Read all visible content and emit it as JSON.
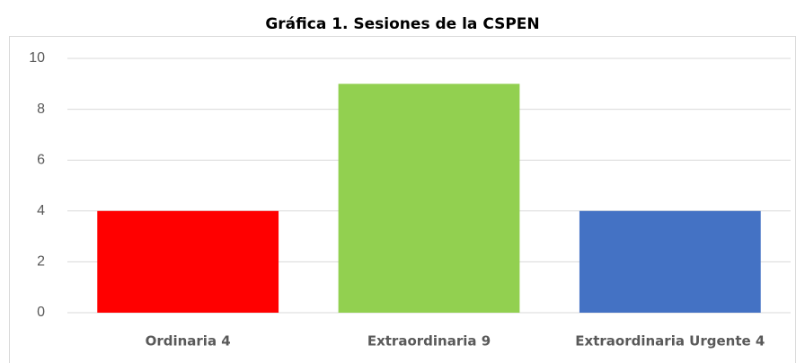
{
  "chart_data": {
    "type": "bar",
    "title": "Gráfica 1. Sesiones de la CSPEN",
    "categories": [
      "Ordinaria 4",
      "Extraordinaria 9",
      "Extraordinaria Urgente 4"
    ],
    "values": [
      4,
      9,
      4
    ],
    "colors": [
      "#ff0000",
      "#92d050",
      "#4472c4"
    ],
    "ylim": [
      0,
      10
    ],
    "yticks": [
      0,
      2,
      4,
      6,
      8,
      10
    ],
    "grid": true
  }
}
